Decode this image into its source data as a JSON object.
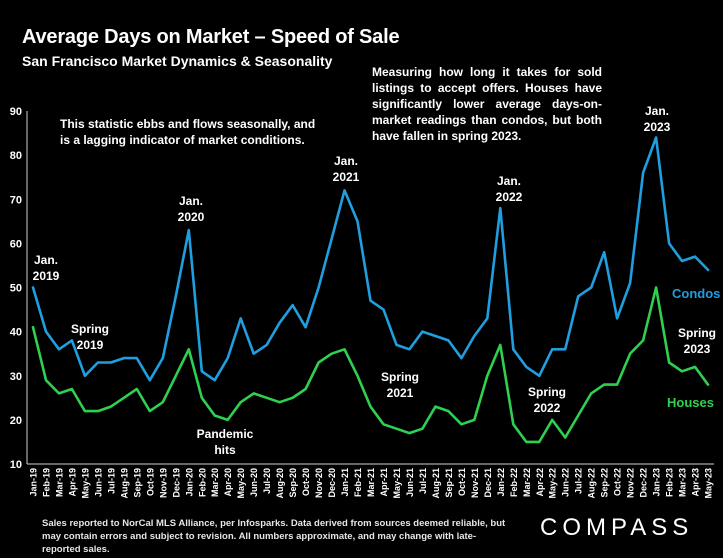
{
  "header": {
    "title": "Average Days on Market – Speed of Sale",
    "subtitle": "San Francisco Market Dynamics & Seasonality"
  },
  "notes": {
    "right": "Measuring how long it takes for sold listings to accept offers. Houses have significantly lower average days-on-market readings than condos, but both have fallen in spring 2023.",
    "left": "This statistic ebbs and flows seasonally, and is a lagging indicator of market conditions."
  },
  "footer": {
    "text": "Sales reported to NorCal MLS Alliance, per Infosparks. Data derived from sources deemed reliable, but may contain errors and subject to revision. All numbers approximate, and may change with late-reported sales.",
    "logo": "COMPASS"
  },
  "chart_data": {
    "type": "line",
    "x": [
      "Jan-19",
      "Feb-19",
      "Mar-19",
      "Apr-19",
      "May-19",
      "Jun-19",
      "Jul-19",
      "Aug-19",
      "Sep-19",
      "Oct-19",
      "Nov-19",
      "Dec-19",
      "Jan-20",
      "Feb-20",
      "Mar-20",
      "Apr-20",
      "May-20",
      "Jun-20",
      "Jul-20",
      "Aug-20",
      "Sep-20",
      "Oct-20",
      "Nov-20",
      "Dec-20",
      "Jan-21",
      "Feb-21",
      "Mar-21",
      "Apr-21",
      "May-21",
      "Jun-21",
      "Jul-21",
      "Aug-21",
      "Sep-21",
      "Oct-21",
      "Nov-21",
      "Dec-21",
      "Jan-22",
      "Feb-22",
      "Mar-22",
      "Apr-22",
      "May-22",
      "Jun-22",
      "Jul-22",
      "Aug-22",
      "Sep-22",
      "Oct-22",
      "Nov-22",
      "Dec-22",
      "Jan-23",
      "Feb-23",
      "Mar-23",
      "Apr-23",
      "May-23"
    ],
    "ylim": [
      10,
      90
    ],
    "yticks": [
      10,
      20,
      30,
      40,
      50,
      60,
      70,
      80,
      90
    ],
    "grid": false,
    "series": [
      {
        "name": "Condos",
        "color": "#1f9ee0",
        "values": [
          50,
          40,
          36,
          38,
          30,
          33,
          33,
          34,
          34,
          29,
          34,
          48,
          63,
          31,
          29,
          34,
          43,
          35,
          37,
          42,
          46,
          41,
          50,
          61,
          72,
          65,
          47,
          45,
          37,
          36,
          40,
          39,
          38,
          34,
          39,
          43,
          68,
          36,
          32,
          30,
          36,
          36,
          48,
          50,
          58,
          43,
          51,
          76,
          84,
          60,
          56,
          57,
          54
        ]
      },
      {
        "name": "Houses",
        "color": "#2fd050",
        "values": [
          41,
          29,
          26,
          27,
          22,
          22,
          23,
          25,
          27,
          22,
          24,
          30,
          36,
          25,
          21,
          20,
          24,
          26,
          25,
          24,
          25,
          27,
          33,
          35,
          36,
          30,
          23,
          19,
          18,
          17,
          18,
          23,
          22,
          19,
          20,
          30,
          37,
          19,
          15,
          15,
          20,
          16,
          21,
          26,
          28,
          28,
          35,
          38,
          50,
          33,
          31,
          32,
          28
        ]
      }
    ],
    "annotations": [
      {
        "text": [
          "Jan.",
          "2019"
        ],
        "color": "#ffffff"
      },
      {
        "text": [
          "Spring",
          "2019"
        ],
        "color": "#ffffff"
      },
      {
        "text": [
          "Jan.",
          "2020"
        ],
        "color": "#ffffff"
      },
      {
        "text": [
          "Pandemic",
          "hits"
        ],
        "color": "#ffffff"
      },
      {
        "text": [
          "Jan.",
          "2021"
        ],
        "color": "#ffffff"
      },
      {
        "text": [
          "Spring",
          "2021"
        ],
        "color": "#ffffff"
      },
      {
        "text": [
          "Jan.",
          "2022"
        ],
        "color": "#ffffff"
      },
      {
        "text": [
          "Spring",
          "2022"
        ],
        "color": "#ffffff"
      },
      {
        "text": [
          "Jan.",
          "2023"
        ],
        "color": "#ffffff"
      },
      {
        "text": [
          "Spring",
          "2023"
        ],
        "color": "#ffffff"
      }
    ]
  }
}
